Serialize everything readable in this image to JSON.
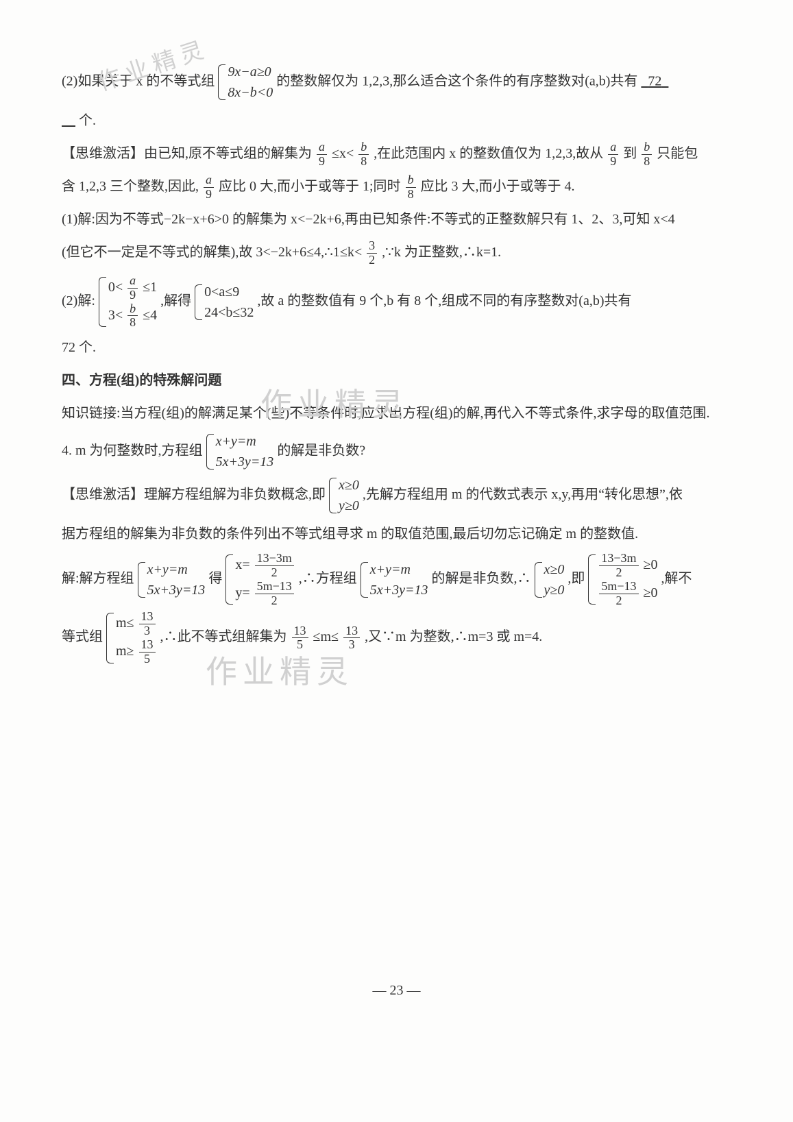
{
  "watermarks": {
    "wm1": "作业精灵",
    "wm2": "作业精灵",
    "wm3": "作业精灵"
  },
  "answer_72": "72",
  "page_num": "— 23 —",
  "p1a": "(2)如果关于 x 的不等式组",
  "p1_sys_r1": "9x−a≥0",
  "p1_sys_r2": "8x−b<0",
  "p1b": "的整数解仅为 1,2,3,那么适合这个条件的有序整数对(a,b)共有",
  "p1c": "个.",
  "swjh1a": "【思维激活】由已知,原不等式组的解集为",
  "swjh1b": ",在此范围内 x 的整数值仅为 1,2,3,故从",
  "swjh1c": "只能包",
  "swjh2a": "含 1,2,3 三个整数,因此,",
  "swjh2b": "应比 0 大,而小于或等于 1;同时",
  "swjh2c": "应比 3 大,而小于或等于 4.",
  "sol1a": "(1)解:因为不等式−2k−x+6>0 的解集为 x<−2k+6,再由已知条件:不等式的正整数解只有 1、2、3,可知 x<4",
  "sol1b": "(但它不一定是不等式的解集),故 3<−2k+6≤4,∴1≤k<",
  "sol1c": ",∵k 为正整数,∴k=1.",
  "sol2_head": "(2)解:",
  "sol2_sys1_r1_a": "0<",
  "sol2_sys1_r1_b": "≤1",
  "sol2_sys1_r2_a": "3<",
  "sol2_sys1_r2_b": "≤4",
  "sol2_mid1": ",解得",
  "sol2_sys2_r1": "0<a≤9",
  "sol2_sys2_r2": "24<b≤32",
  "sol2_tail": ",故 a 的整数值有 9 个,b 有 8 个,组成不同的有序整数对(a,b)共有",
  "sol2_last": "72 个.",
  "h4": "四、方程(组)的特殊解问题",
  "zslj": "知识链接:当方程(组)的解满足某个(些)不等条件时,应求出方程(组)的解,再代入不等式条件,求字母的取值范围.",
  "q4a": "4. m 为何整数时,方程组",
  "q4_sys_r1": "x+y=m",
  "q4_sys_r2": "5x+3y=13",
  "q4b": "的解是非负数?",
  "swjh4a": "【思维激活】理解方程组解为非负数概念,即",
  "swjh4_sys_r1": "x≥0",
  "swjh4_sys_r2": "y≥0",
  "swjh4b": ",先解方程组用 m 的代数式表示 x,y,再用“转化思想”,依",
  "swjh4c": "据方程组的解集为非负数的条件列出不等式组寻求 m 的取值范围,最后切勿忘记确定 m 的整数值.",
  "sol4_head": "解:解方程组",
  "sol4_sys1_r1": "x+y=m",
  "sol4_sys1_r2": "5x+3y=13",
  "sol4_mid1": "得",
  "sol4_sys2_r1a": "x=",
  "sol4_sys2_r2a": "y=",
  "sol4_mid2": ",∴方程组",
  "sol4_sys3_r1": "x+y=m",
  "sol4_sys3_r2": "5x+3y=13",
  "sol4_mid3": "的解是非负数,∴",
  "sol4_sys4_r1": "x≥0",
  "sol4_sys4_r2": "y≥0",
  "sol4_mid4": ",即",
  "sol4_sys5_suffix": "≥0",
  "sol4_mid5": ",解不",
  "sol4_last_a": "等式组",
  "sol4_sys6_r1a": "m≤",
  "sol4_sys6_r2a": "m≥",
  "sol4_last_b": ",∴此不等式组解集为",
  "sol4_last_c": "≤m≤",
  "sol4_last_d": ",又∵m 为整数,∴m=3 或 m=4.",
  "fr_a9_n": "a",
  "fr_a9_d": "9",
  "fr_b8_n": "b",
  "fr_b8_d": "8",
  "fr_32_n": "3",
  "fr_32_d": "2",
  "fr_133_n": "13",
  "fr_133_d": "3",
  "fr_135_n": "13",
  "fr_135_d": "5",
  "fr_133m_n": "13−3m",
  "fr_133m_d": "2",
  "fr_5m13_n": "5m−13",
  "fr_5m13_d": "2",
  "le": "≤",
  "lt_x": "≤x<",
  "to": "到"
}
